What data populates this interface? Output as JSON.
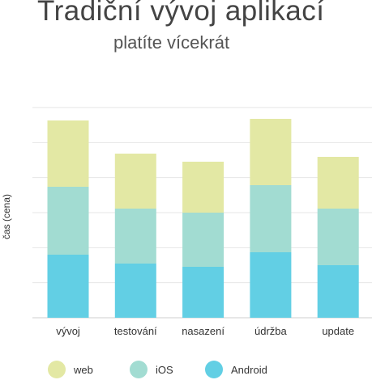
{
  "chart_data": {
    "type": "bar",
    "stacked": true,
    "title": "Tradiční vývoj aplikací",
    "subtitle": "platíte vícekrát",
    "xlabel": "",
    "ylabel": "čas (cena)",
    "categories": [
      "vývoj",
      "testování",
      "nasazení",
      "údržba",
      "update"
    ],
    "series": [
      {
        "name": "Android",
        "color": "#62cfe4",
        "values": [
          78,
          67,
          63,
          81,
          65
        ]
      },
      {
        "name": "iOS",
        "color": "#a2dcd2",
        "values": [
          84,
          68,
          67,
          83,
          70
        ]
      },
      {
        "name": "web",
        "color": "#e3e8a4",
        "values": [
          82,
          68,
          63,
          82,
          64
        ]
      }
    ],
    "ylim": [
      0,
      260
    ],
    "grid": true,
    "legend_order": [
      "web",
      "iOS",
      "Android"
    ],
    "legend_position": "bottom"
  }
}
